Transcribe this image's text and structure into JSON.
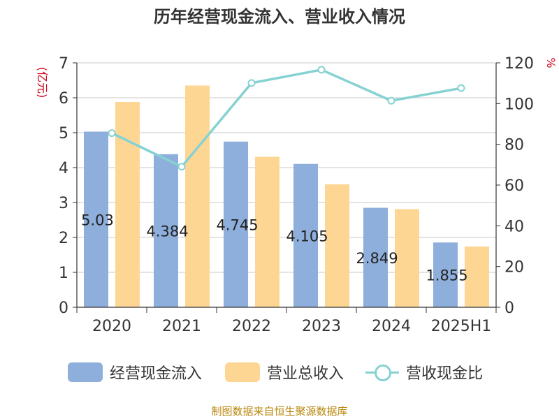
{
  "title": "历年经营现金流入、营业收入情况",
  "footer": "制图数据来自恒生聚源数据库",
  "colors": {
    "cash_inflow": "#8eaedb",
    "revenue": "#fed694",
    "ratio": "#86d2d3",
    "axis_unit": "#d0021b",
    "grid": "#c8c8c8"
  },
  "chart_data": {
    "type": "bar",
    "categories": [
      "2020",
      "2021",
      "2022",
      "2023",
      "2024",
      "2025H1"
    ],
    "ylabel_left": "(亿元)",
    "ylabel_right": "%",
    "ylim_left": [
      0,
      7
    ],
    "ylim_right": [
      0,
      120
    ],
    "yticks_left": [
      "0",
      "1",
      "2",
      "3",
      "4",
      "5",
      "6",
      "7"
    ],
    "yticks_right": [
      "0",
      "20",
      "40",
      "60",
      "80",
      "100",
      "120"
    ],
    "grid": true,
    "legend_position": "bottom",
    "series": [
      {
        "name": "经营现金流入",
        "type": "bar",
        "axis": "left",
        "values": [
          5.03,
          4.384,
          4.745,
          4.105,
          2.849,
          1.855
        ],
        "labels": [
          "5.03",
          "4.384",
          "4.745",
          "4.105",
          "2.849",
          "1.855"
        ]
      },
      {
        "name": "营业总收入",
        "type": "bar",
        "axis": "left",
        "values": [
          5.88,
          6.35,
          4.31,
          3.52,
          2.81,
          1.74
        ]
      },
      {
        "name": "营收现金比",
        "type": "line",
        "axis": "right",
        "values": [
          85.5,
          69.0,
          110.1,
          116.6,
          101.4,
          107.6
        ]
      }
    ]
  }
}
